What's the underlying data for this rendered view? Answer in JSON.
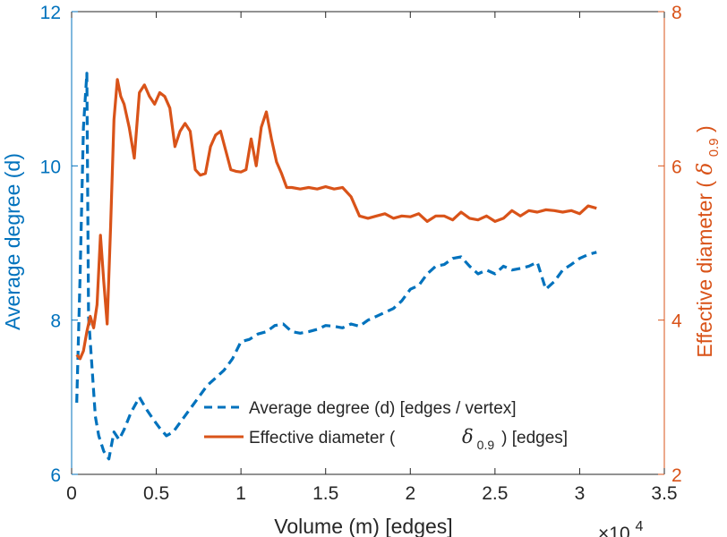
{
  "chart_data": {
    "type": "line",
    "title": "",
    "xlabel": "Volume (m) [edges]",
    "x_multiplier": "×10",
    "x_multiplier_exp": "4",
    "ylabel_left": "Average degree (d)",
    "ylabel_right": "Effective diameter (δ0.9)",
    "ylabel_right_parts": [
      "Effective diameter ( ",
      "δ",
      "0.9",
      " )"
    ],
    "xlim": [
      0,
      3.5
    ],
    "ylim_left": [
      6,
      12
    ],
    "ylim_right": [
      2,
      8
    ],
    "xticks": [
      0,
      0.5,
      1,
      1.5,
      2,
      2.5,
      3,
      3.5
    ],
    "xtick_labels": [
      "0",
      "0.5",
      "1",
      "1.5",
      "2",
      "2.5",
      "3",
      "3.5"
    ],
    "yticks_left": [
      6,
      8,
      10,
      12
    ],
    "ytick_labels_left": [
      "6",
      "8",
      "10",
      "12"
    ],
    "yticks_right": [
      2,
      4,
      6,
      8
    ],
    "ytick_labels_right": [
      "2",
      "4",
      "6",
      "8"
    ],
    "colors": {
      "left_axis": "#0072BD",
      "right_axis": "#D95319",
      "frame": "#262626"
    },
    "legend": {
      "position": "bottom-center",
      "entries": [
        {
          "name": "series-average-degree",
          "text": "Average degree (d) [edges / vertex]"
        },
        {
          "name": "series-effective-diameter",
          "text_before": "Effective diameter (",
          "symbol": "δ",
          "subscript": "0.9",
          "text_after": ") [edges]"
        }
      ]
    },
    "series": [
      {
        "name": "Average degree (d) [edges / vertex]",
        "axis": "left",
        "style": "dashed",
        "color": "#0072BD",
        "x": [
          0.03,
          0.05,
          0.07,
          0.09,
          0.1,
          0.12,
          0.14,
          0.16,
          0.19,
          0.22,
          0.25,
          0.28,
          0.31,
          0.35,
          0.4,
          0.44,
          0.48,
          0.52,
          0.56,
          0.6,
          0.65,
          0.7,
          0.75,
          0.8,
          0.85,
          0.9,
          0.95,
          1.0,
          1.05,
          1.1,
          1.15,
          1.2,
          1.25,
          1.3,
          1.35,
          1.4,
          1.45,
          1.5,
          1.55,
          1.6,
          1.65,
          1.7,
          1.75,
          1.8,
          1.85,
          1.9,
          1.95,
          2.0,
          2.05,
          2.1,
          2.15,
          2.2,
          2.25,
          2.3,
          2.35,
          2.4,
          2.45,
          2.5,
          2.55,
          2.6,
          2.65,
          2.7,
          2.75,
          2.8,
          2.85,
          2.9,
          2.95,
          3.0,
          3.05,
          3.1
        ],
        "y": [
          6.93,
          8.6,
          10.5,
          11.2,
          8.05,
          7.4,
          6.75,
          6.5,
          6.3,
          6.2,
          6.55,
          6.45,
          6.58,
          6.8,
          7.0,
          6.85,
          6.72,
          6.6,
          6.5,
          6.55,
          6.7,
          6.85,
          7.0,
          7.15,
          7.25,
          7.35,
          7.5,
          7.72,
          7.75,
          7.82,
          7.85,
          7.93,
          7.95,
          7.85,
          7.83,
          7.85,
          7.88,
          7.93,
          7.92,
          7.9,
          7.95,
          7.92,
          8.0,
          8.05,
          8.1,
          8.15,
          8.25,
          8.4,
          8.45,
          8.6,
          8.7,
          8.72,
          8.8,
          8.82,
          8.7,
          8.6,
          8.65,
          8.6,
          8.7,
          8.65,
          8.67,
          8.7,
          8.75,
          8.4,
          8.5,
          8.65,
          8.72,
          8.8,
          8.85,
          8.88
        ]
      },
      {
        "name": "Effective diameter (δ0.9) [edges]",
        "axis": "right",
        "style": "solid",
        "color": "#D95319",
        "x": [
          0.03,
          0.05,
          0.07,
          0.09,
          0.11,
          0.13,
          0.15,
          0.17,
          0.19,
          0.21,
          0.23,
          0.25,
          0.27,
          0.29,
          0.31,
          0.34,
          0.37,
          0.4,
          0.43,
          0.46,
          0.49,
          0.52,
          0.55,
          0.58,
          0.61,
          0.64,
          0.67,
          0.7,
          0.73,
          0.76,
          0.79,
          0.82,
          0.85,
          0.88,
          0.91,
          0.94,
          0.97,
          1.0,
          1.03,
          1.06,
          1.09,
          1.12,
          1.15,
          1.18,
          1.21,
          1.24,
          1.27,
          1.3,
          1.35,
          1.4,
          1.45,
          1.5,
          1.55,
          1.6,
          1.65,
          1.7,
          1.75,
          1.8,
          1.85,
          1.9,
          1.95,
          2.0,
          2.05,
          2.1,
          2.15,
          2.2,
          2.25,
          2.3,
          2.35,
          2.4,
          2.45,
          2.5,
          2.55,
          2.6,
          2.65,
          2.7,
          2.75,
          2.8,
          2.85,
          2.9,
          2.95,
          3.0,
          3.05,
          3.1
        ],
        "y": [
          3.55,
          3.5,
          3.6,
          3.85,
          4.05,
          3.9,
          4.2,
          5.1,
          4.5,
          3.95,
          5.2,
          6.6,
          7.12,
          6.9,
          6.8,
          6.5,
          6.1,
          6.95,
          7.05,
          6.9,
          6.8,
          6.95,
          6.9,
          6.75,
          6.25,
          6.45,
          6.55,
          6.45,
          5.95,
          5.88,
          5.9,
          6.25,
          6.4,
          6.45,
          6.2,
          5.95,
          5.93,
          5.92,
          5.95,
          6.35,
          6.0,
          6.5,
          6.7,
          6.35,
          6.05,
          5.9,
          5.72,
          5.72,
          5.7,
          5.72,
          5.7,
          5.73,
          5.7,
          5.72,
          5.6,
          5.35,
          5.32,
          5.35,
          5.38,
          5.32,
          5.35,
          5.34,
          5.38,
          5.28,
          5.35,
          5.35,
          5.3,
          5.4,
          5.32,
          5.3,
          5.35,
          5.28,
          5.32,
          5.42,
          5.35,
          5.42,
          5.4,
          5.43,
          5.42,
          5.4,
          5.42,
          5.38,
          5.48,
          5.45
        ]
      }
    ]
  }
}
